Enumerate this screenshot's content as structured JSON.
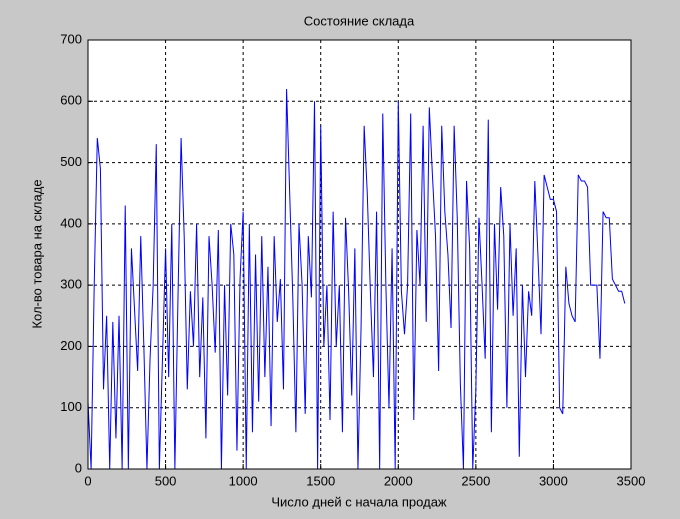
{
  "chart_data": {
    "type": "line",
    "title": "Состояние склада",
    "x_label": "Число дней с начала продаж",
    "y_label": "Кол-во товара на складе",
    "x": [
      0,
      20,
      40,
      60,
      80,
      100,
      120,
      140,
      160,
      180,
      200,
      220,
      240,
      260,
      280,
      300,
      320,
      340,
      360,
      380,
      400,
      420,
      440,
      460,
      480,
      500,
      520,
      540,
      560,
      580,
      600,
      620,
      640,
      660,
      680,
      700,
      720,
      740,
      760,
      780,
      800,
      820,
      840,
      860,
      880,
      900,
      920,
      940,
      960,
      980,
      1000,
      1020,
      1040,
      1060,
      1080,
      1100,
      1120,
      1140,
      1160,
      1180,
      1200,
      1220,
      1240,
      1260,
      1280,
      1300,
      1320,
      1340,
      1360,
      1380,
      1400,
      1420,
      1440,
      1460,
      1480,
      1500,
      1520,
      1540,
      1560,
      1580,
      1600,
      1620,
      1640,
      1660,
      1680,
      1700,
      1720,
      1740,
      1760,
      1780,
      1800,
      1820,
      1840,
      1860,
      1880,
      1900,
      1920,
      1940,
      1960,
      1980,
      2000,
      2020,
      2040,
      2060,
      2080,
      2100,
      2120,
      2140,
      2160,
      2180,
      2200,
      2220,
      2240,
      2260,
      2280,
      2300,
      2320,
      2340,
      2360,
      2380,
      2400,
      2420,
      2440,
      2460,
      2480,
      2500,
      2520,
      2540,
      2560,
      2580,
      2600,
      2620,
      2640,
      2660,
      2680,
      2700,
      2720,
      2740,
      2760,
      2780,
      2800,
      2820,
      2840,
      2860,
      2880,
      2900,
      2920,
      2940,
      2960,
      2980,
      3000,
      3020,
      3040,
      3060,
      3080,
      3100,
      3120,
      3140,
      3160,
      3180,
      3200,
      3220,
      3240,
      3260,
      3280,
      3300,
      3320,
      3340,
      3360,
      3380,
      3400,
      3420,
      3440,
      3460
    ],
    "series": [
      {
        "color": "#0000ff",
        "values": [
          110,
          0,
          300,
          540,
          490,
          130,
          250,
          0,
          240,
          50,
          250,
          0,
          430,
          0,
          360,
          260,
          160,
          380,
          200,
          0,
          180,
          300,
          530,
          0,
          180,
          360,
          150,
          400,
          0,
          280,
          540,
          380,
          130,
          290,
          200,
          400,
          150,
          280,
          50,
          380,
          300,
          190,
          390,
          0,
          300,
          120,
          400,
          350,
          30,
          310,
          420,
          0,
          400,
          60,
          350,
          110,
          380,
          150,
          330,
          70,
          380,
          240,
          310,
          130,
          620,
          450,
          280,
          60,
          400,
          300,
          90,
          380,
          280,
          600,
          0,
          560,
          200,
          300,
          80,
          420,
          200,
          300,
          60,
          410,
          290,
          120,
          360,
          0,
          230,
          560,
          450,
          290,
          150,
          420,
          0,
          580,
          300,
          100,
          360,
          0,
          600,
          290,
          220,
          300,
          580,
          80,
          390,
          300,
          560,
          240,
          590,
          480,
          380,
          160,
          560,
          420,
          350,
          230,
          560,
          410,
          140,
          0,
          470,
          360,
          0,
          130,
          410,
          300,
          180,
          570,
          60,
          400,
          260,
          460,
          380,
          100,
          400,
          250,
          360,
          20,
          300,
          150,
          290,
          250,
          470,
          350,
          220,
          480,
          460,
          440,
          440,
          420,
          100,
          90,
          330,
          270,
          250,
          240,
          480,
          470,
          470,
          460,
          300,
          300,
          300,
          180,
          420,
          410,
          410,
          310,
          300,
          290,
          290,
          270
        ]
      }
    ],
    "xlim": [
      0,
      3500
    ],
    "ylim": [
      0,
      700
    ],
    "xticks": [
      0,
      500,
      1000,
      1500,
      2000,
      2500,
      3000,
      3500
    ],
    "yticks": [
      0,
      100,
      200,
      300,
      400,
      500,
      600,
      700
    ],
    "grid": true
  }
}
